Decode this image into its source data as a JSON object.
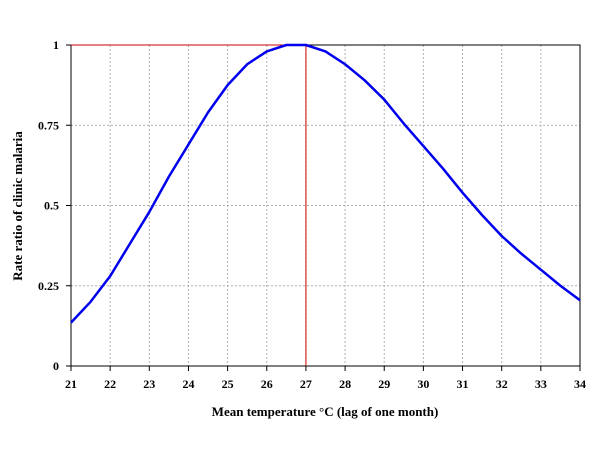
{
  "chart_data": {
    "type": "line",
    "title": "",
    "xlabel": "Mean temperature °C (lag of one  month)",
    "ylabel": "Rate ratio of clinic malaria",
    "xlim": [
      21,
      34
    ],
    "ylim": [
      0,
      1
    ],
    "x_ticks": [
      "21",
      "22",
      "23",
      "24",
      "25",
      "26",
      "27",
      "28",
      "29",
      "30",
      "31",
      "32",
      "33",
      "34"
    ],
    "y_ticks": [
      "0",
      "0.25",
      "0.5",
      "0.75",
      "1"
    ],
    "grid": true,
    "legend": "none",
    "series": [
      {
        "color": "#0000ee",
        "x": [
          21,
          21.5,
          22,
          22.5,
          23,
          23.5,
          24,
          24.5,
          25,
          25.5,
          26,
          26.5,
          27,
          27.5,
          28,
          28.5,
          29,
          29.5,
          30,
          30.5,
          31,
          31.5,
          32,
          32.5,
          33,
          33.5,
          34
        ],
        "y": [
          0.135,
          0.2,
          0.28,
          0.38,
          0.48,
          0.59,
          0.69,
          0.79,
          0.875,
          0.94,
          0.98,
          1.0,
          1.0,
          0.98,
          0.94,
          0.89,
          0.83,
          0.755,
          0.685,
          0.615,
          0.54,
          0.47,
          0.405,
          0.35,
          0.3,
          0.25,
          0.205
        ]
      }
    ],
    "reference_lines": [
      {
        "color": "#cc0000",
        "x": [
          21,
          27,
          27
        ],
        "y": [
          1,
          1,
          0
        ]
      }
    ]
  }
}
